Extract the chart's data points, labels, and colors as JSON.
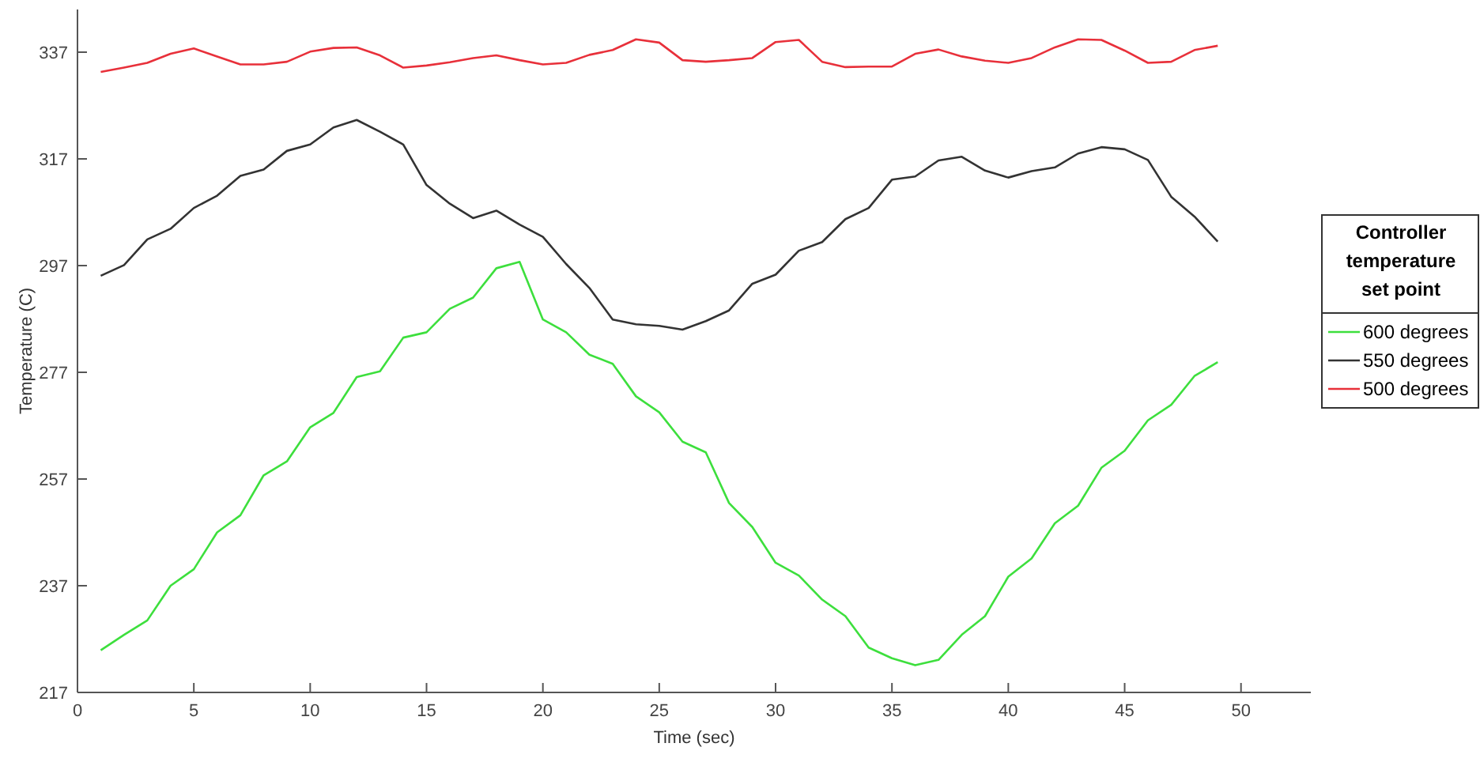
{
  "chart_data": {
    "type": "line",
    "xlabel": "Time (sec)",
    "ylabel": "Temperature (C)",
    "legend_title": "Controller temperature set point",
    "legend": "right",
    "grid": false,
    "line_style": "solid",
    "marker": "none",
    "x": [
      1,
      2,
      3,
      4,
      5,
      6,
      7,
      8,
      9,
      10,
      11,
      12,
      13,
      14,
      15,
      16,
      17,
      18,
      19,
      20,
      21,
      22,
      23,
      24,
      25,
      26,
      27,
      28,
      29,
      30,
      31,
      32,
      33,
      34,
      35,
      36,
      37,
      38,
      39,
      40,
      41,
      42,
      43,
      44,
      45,
      46,
      47,
      48,
      49
    ],
    "xlim": [
      0,
      53
    ],
    "xticks": [
      0,
      5,
      10,
      15,
      20,
      25,
      30,
      35,
      40,
      45,
      50
    ],
    "ylim": [
      217,
      345
    ],
    "yticks": [
      217,
      237,
      257,
      277,
      297,
      317,
      337
    ],
    "series": [
      {
        "name": "600 degrees",
        "color": "#3ddf3d",
        "values": [
          224.9,
          227.8,
          230.5,
          237.0,
          240.1,
          247.0,
          250.2,
          257.7,
          260.3,
          266.7,
          269.4,
          276.1,
          277.2,
          283.5,
          284.5,
          288.9,
          291.0,
          296.5,
          297.7,
          286.9,
          284.5,
          280.3,
          278.6,
          272.5,
          269.5,
          264.0,
          262.0,
          252.5,
          248.0,
          241.3,
          238.9,
          234.4,
          231.3,
          225.4,
          223.4,
          222.1,
          223.1,
          227.8,
          231.3,
          238.7,
          242.1,
          248.7,
          252.0,
          259.1,
          262.3,
          268.0,
          270.9,
          276.3,
          278.9
        ]
      },
      {
        "name": "550 degrees",
        "color": "#333333",
        "values": [
          295.1,
          297.1,
          301.9,
          303.9,
          307.8,
          310.1,
          313.8,
          315.0,
          318.5,
          319.7,
          322.9,
          324.3,
          322.1,
          319.7,
          312.1,
          308.6,
          305.9,
          307.3,
          304.7,
          302.4,
          297.3,
          292.8,
          286.9,
          286.0,
          285.7,
          285.0,
          286.6,
          288.6,
          293.6,
          295.3,
          299.8,
          301.4,
          305.7,
          307.8,
          313.1,
          313.7,
          316.7,
          317.4,
          314.8,
          313.5,
          314.7,
          315.4,
          318.0,
          319.2,
          318.8,
          316.8,
          309.9,
          306.2,
          301.5
        ]
      },
      {
        "name": "500 degrees",
        "color": "#e8303a",
        "values": [
          333.3,
          334.1,
          335.0,
          336.7,
          337.7,
          336.2,
          334.7,
          334.7,
          335.2,
          337.1,
          337.8,
          337.9,
          336.4,
          334.1,
          334.5,
          335.1,
          335.9,
          336.4,
          335.5,
          334.7,
          335.0,
          336.5,
          337.4,
          339.4,
          338.8,
          335.5,
          335.2,
          335.5,
          335.9,
          338.9,
          339.3,
          335.2,
          334.2,
          334.3,
          334.3,
          336.7,
          337.5,
          336.2,
          335.4,
          335.0,
          335.9,
          337.9,
          339.4,
          339.3,
          337.3,
          335.0,
          335.2,
          337.4,
          338.2
        ]
      }
    ]
  }
}
